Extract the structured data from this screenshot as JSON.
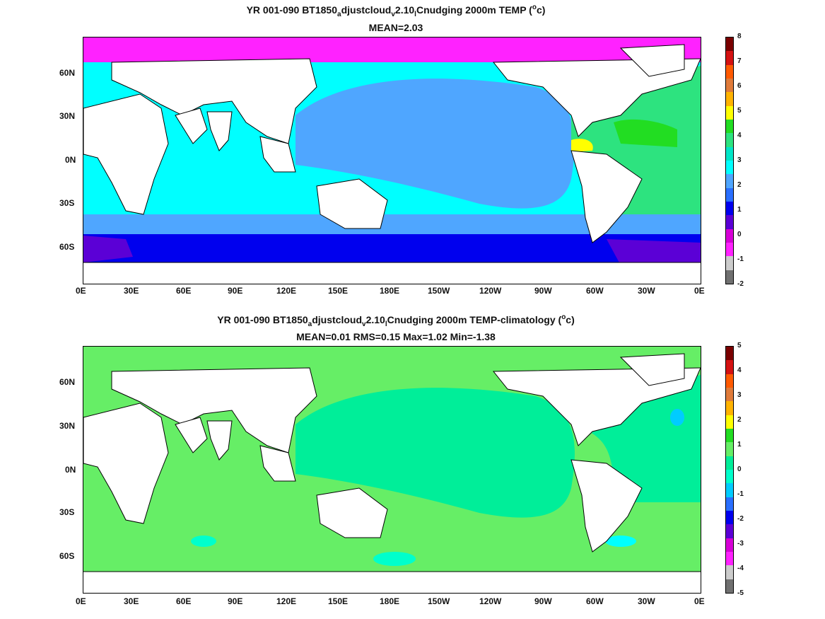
{
  "top": {
    "title_pre": "YR 001-090 BT1850",
    "sub1": "a",
    "mid1": "djustcloud",
    "sub2": "v",
    "mid2": "2.10",
    "sub3": "l",
    "title_post": "Cnudging 2000m TEMP (",
    "sup": "o",
    "unit": "c)",
    "stats": "MEAN=2.03",
    "colorbar_labels": [
      "8",
      "7",
      "6",
      "5",
      "4",
      "3",
      "2",
      "1",
      "0",
      "-1",
      "-2"
    ],
    "colors": [
      "#7a0000",
      "#d41212",
      "#ff5a00",
      "#e07b3a",
      "#ffb300",
      "#ffff00",
      "#22dd22",
      "#2de37f",
      "#00e6c8",
      "#00ffff",
      "#4fa6ff",
      "#2a6fff",
      "#0000ee",
      "#5b00d6",
      "#d700d7",
      "#ff22ff",
      "#cccccc",
      "#707070"
    ]
  },
  "bottom": {
    "title_pre": "YR 001-090 BT1850",
    "sub1": "a",
    "mid1": "djustcloud",
    "sub2": "v",
    "mid2": "2.10",
    "sub3": "l",
    "title_post": "Cnudging 2000m TEMP-climatology (",
    "sup": "o",
    "unit": "c)",
    "stats": "MEAN=0.01   RMS=0.15   Max=1.02   Min=-1.38",
    "colorbar_labels": [
      "5",
      "4",
      "3",
      "2",
      "1",
      "0",
      "-1",
      "-2",
      "-3",
      "-4",
      "-5"
    ],
    "colors": [
      "#7a0000",
      "#d41212",
      "#ff5a00",
      "#e07b3a",
      "#ffb300",
      "#ffff00",
      "#22dd22",
      "#66ee66",
      "#00ee99",
      "#00ffcc",
      "#00ccff",
      "#2a6fff",
      "#0000ee",
      "#5b00d6",
      "#d700d7",
      "#ff22ff",
      "#cccccc",
      "#707070"
    ]
  },
  "lat_labels": [
    "60N",
    "30N",
    "0N",
    "30S",
    "60S"
  ],
  "lon_labels": [
    "0E",
    "30E",
    "60E",
    "90E",
    "120E",
    "150E",
    "180E",
    "150W",
    "120W",
    "90W",
    "60W",
    "30W",
    "0E"
  ]
}
